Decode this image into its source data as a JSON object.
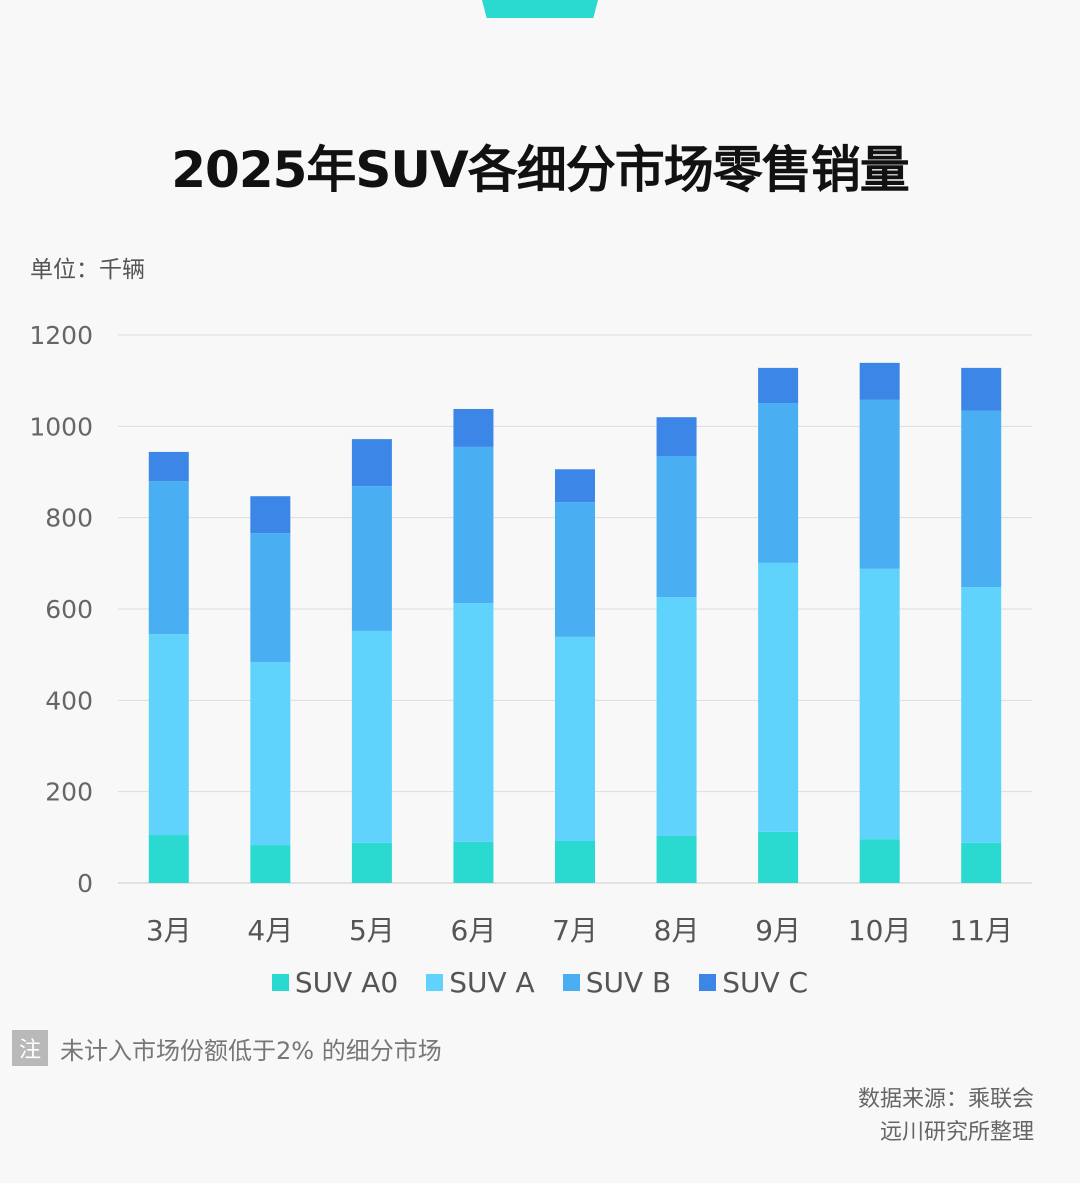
{
  "title": "2025年SUV各细分市场零售销量",
  "unit_label": "单位：千辆",
  "note": {
    "badge": "注",
    "text": "未计入市场份额低于2% 的细分市场"
  },
  "source": {
    "line1": "数据来源：乘联会",
    "line2": "远川研究所整理"
  },
  "colors": {
    "accent": "#2ad9cf"
  },
  "chart_data": {
    "type": "bar",
    "stacked": true,
    "title": "2025年SUV各细分市场零售销量",
    "ylabel": "单位：千辆",
    "ylim": [
      0,
      1200
    ],
    "yticks": [
      0,
      200,
      400,
      600,
      800,
      1000,
      1200
    ],
    "grid": true,
    "legend": "bottom",
    "categories": [
      "3月",
      "4月",
      "5月",
      "6月",
      "7月",
      "8月",
      "9月",
      "10月",
      "11月"
    ],
    "series": [
      {
        "name": "SUV A0",
        "color": "#2ad9cf",
        "values": [
          105,
          83,
          88,
          90,
          92,
          103,
          112,
          96,
          88
        ]
      },
      {
        "name": "SUV A",
        "color": "#5fd3fc",
        "values": [
          440,
          401,
          464,
          523,
          447,
          523,
          589,
          592,
          560
        ]
      },
      {
        "name": "SUV B",
        "color": "#4aaef2",
        "values": [
          335,
          282,
          317,
          342,
          295,
          309,
          350,
          370,
          386
        ]
      },
      {
        "name": "SUV C",
        "color": "#3b86e6",
        "values": [
          64,
          81,
          103,
          83,
          72,
          85,
          77,
          81,
          94
        ]
      }
    ]
  }
}
